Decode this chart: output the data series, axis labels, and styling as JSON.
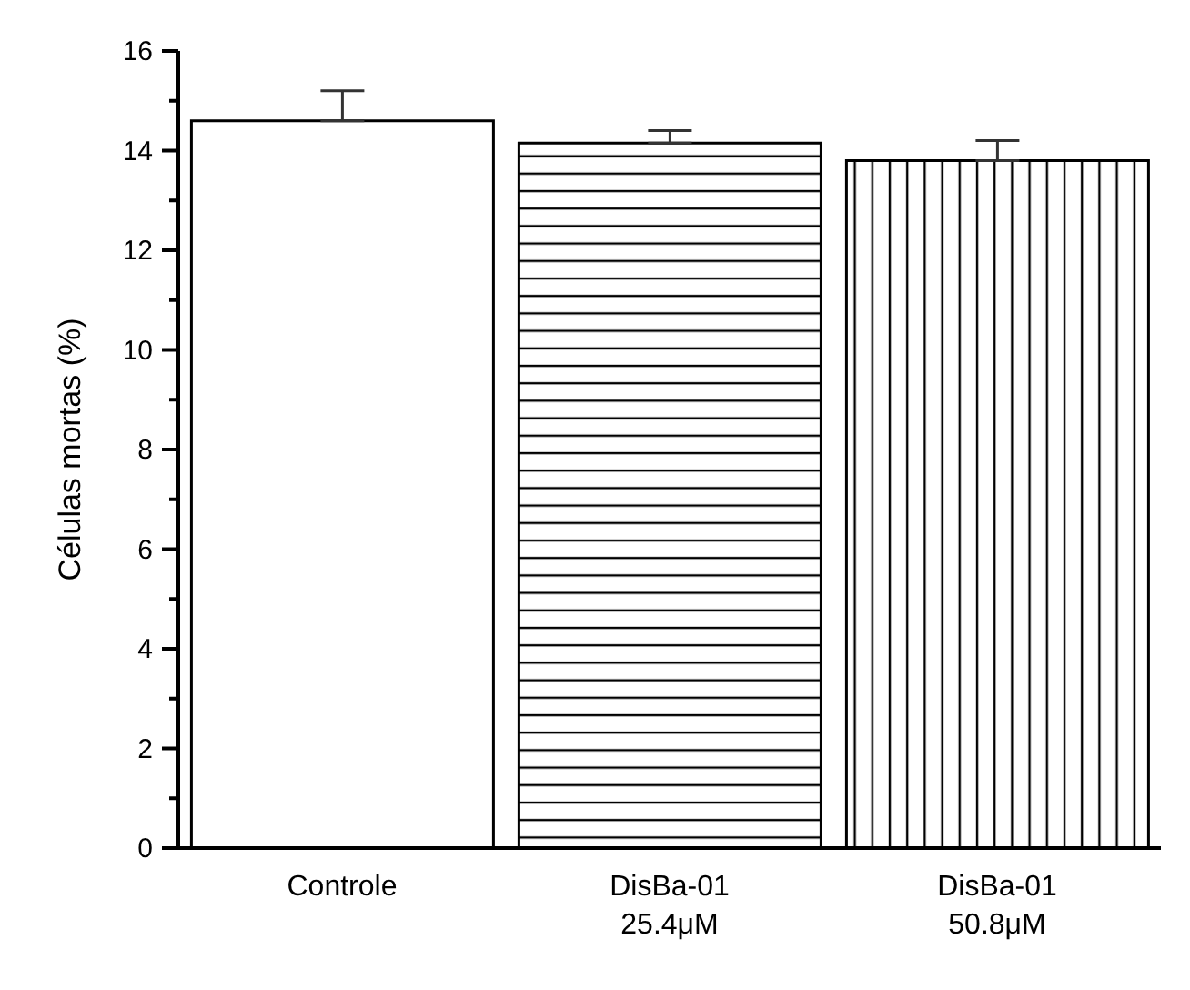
{
  "chart_data": {
    "type": "bar",
    "ylabel": "Células mortas (%)",
    "categories": [
      "Controle",
      "DisBa-01\n25.4μM",
      "DisBa-01\n50.8μM"
    ],
    "values": [
      14.6,
      14.15,
      13.8
    ],
    "errors": [
      [
        14.6,
        15.2
      ],
      [
        14.15,
        14.4
      ],
      [
        13.8,
        14.2
      ]
    ],
    "colors": [
      "#ffffff",
      "#000000",
      "#000000"
    ],
    "ylim": [
      0,
      16
    ],
    "yticks": [
      0,
      {
        "value": 1,
        "label": null
      },
      2,
      {
        "value": 3,
        "label": null
      },
      4,
      {
        "value": 5,
        "label": null
      },
      6,
      {
        "value": 7,
        "label": null
      },
      8,
      {
        "value": 9,
        "label": null
      },
      10,
      {
        "value": 11,
        "label": null
      },
      12,
      {
        "value": 13,
        "label": null
      },
      14,
      {
        "value": 15,
        "label": null
      },
      16
    ],
    "grid": false,
    "legend": false
  }
}
